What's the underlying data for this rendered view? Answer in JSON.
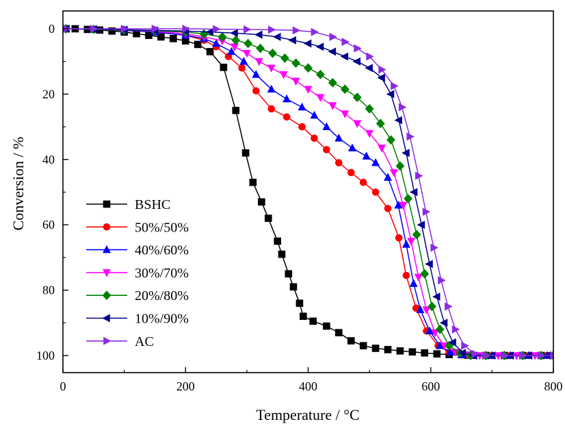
{
  "chart_data": {
    "type": "line",
    "xlabel": "Temperature / °C",
    "ylabel": "Conversion / %",
    "xlim": [
      0,
      800
    ],
    "ylim": [
      0,
      105
    ],
    "y_axis_inverted": true,
    "x_ticks": [
      0,
      200,
      400,
      600,
      800
    ],
    "x_tick_labels": [
      "0",
      "200",
      "400",
      "600",
      "800"
    ],
    "y_ticks": [
      0,
      20,
      40,
      60,
      80,
      100
    ],
    "y_tick_labels": [
      "0",
      "20",
      "40",
      "60",
      "80",
      "100"
    ],
    "grid": false,
    "legend_position": "bottom-left",
    "series": [
      {
        "name": "BSHC",
        "color": "#000000",
        "marker": "square",
        "points": [
          [
            5,
            0
          ],
          [
            20,
            0
          ],
          [
            40,
            0.2
          ],
          [
            60,
            0.4
          ],
          [
            80,
            0.7
          ],
          [
            100,
            1.0
          ],
          [
            120,
            1.5
          ],
          [
            140,
            2.0
          ],
          [
            160,
            2.5
          ],
          [
            180,
            3.0
          ],
          [
            200,
            3.7
          ],
          [
            220,
            4.8
          ],
          [
            240,
            7.0
          ],
          [
            262,
            11.8
          ],
          [
            282,
            25
          ],
          [
            298,
            38
          ],
          [
            310,
            47
          ],
          [
            324,
            53
          ],
          [
            335,
            58
          ],
          [
            350,
            65
          ],
          [
            357,
            69
          ],
          [
            368,
            75
          ],
          [
            376,
            79
          ],
          [
            386,
            84
          ],
          [
            392,
            88
          ],
          [
            408,
            89.5
          ],
          [
            430,
            91
          ],
          [
            450,
            93
          ],
          [
            470,
            95.5
          ],
          [
            490,
            97
          ],
          [
            510,
            97.8
          ],
          [
            530,
            98.2
          ],
          [
            550,
            98.6
          ],
          [
            570,
            98.9
          ],
          [
            590,
            99.2
          ],
          [
            610,
            99.5
          ],
          [
            630,
            99.7
          ],
          [
            660,
            99.9
          ],
          [
            690,
            100
          ],
          [
            720,
            100
          ],
          [
            750,
            100
          ],
          [
            780,
            100
          ],
          [
            800,
            100
          ]
        ]
      },
      {
        "name": "50%/50%",
        "color": "#ff0000",
        "marker": "circle",
        "points": [
          [
            5,
            0
          ],
          [
            50,
            0.2
          ],
          [
            100,
            0.5
          ],
          [
            150,
            1.0
          ],
          [
            200,
            2.0
          ],
          [
            230,
            3.5
          ],
          [
            250,
            5.5
          ],
          [
            270,
            8.5
          ],
          [
            292,
            12
          ],
          [
            315,
            19
          ],
          [
            340,
            24.5
          ],
          [
            365,
            27
          ],
          [
            390,
            30
          ],
          [
            410,
            33.5
          ],
          [
            430,
            37
          ],
          [
            450,
            41
          ],
          [
            470,
            44
          ],
          [
            490,
            47
          ],
          [
            510,
            50
          ],
          [
            530,
            55
          ],
          [
            548,
            64
          ],
          [
            560,
            75.5
          ],
          [
            576,
            85.5
          ],
          [
            593,
            92.5
          ],
          [
            612,
            97
          ],
          [
            630,
            99
          ],
          [
            650,
            99.8
          ],
          [
            670,
            100
          ],
          [
            700,
            100
          ],
          [
            730,
            100
          ],
          [
            760,
            100
          ],
          [
            790,
            100
          ],
          [
            800,
            100
          ]
        ]
      },
      {
        "name": "40%/60%",
        "color": "#0000ff",
        "marker": "triangle-up",
        "points": [
          [
            5,
            0
          ],
          [
            50,
            0.2
          ],
          [
            100,
            0.5
          ],
          [
            150,
            1.0
          ],
          [
            200,
            2.0
          ],
          [
            230,
            3.0
          ],
          [
            250,
            4.5
          ],
          [
            275,
            7.0
          ],
          [
            295,
            10
          ],
          [
            315,
            14
          ],
          [
            340,
            18.5
          ],
          [
            365,
            21.5
          ],
          [
            390,
            24
          ],
          [
            410,
            26.5
          ],
          [
            430,
            30
          ],
          [
            450,
            33.5
          ],
          [
            472,
            36.5
          ],
          [
            495,
            39
          ],
          [
            510,
            41
          ],
          [
            530,
            45.5
          ],
          [
            547,
            54
          ],
          [
            560,
            66
          ],
          [
            572,
            78
          ],
          [
            583,
            86
          ],
          [
            598,
            92.5
          ],
          [
            615,
            97
          ],
          [
            632,
            99
          ],
          [
            650,
            99.8
          ],
          [
            670,
            100
          ],
          [
            700,
            100
          ],
          [
            730,
            100
          ],
          [
            760,
            100
          ],
          [
            790,
            100
          ],
          [
            800,
            100
          ]
        ]
      },
      {
        "name": "30%/70%",
        "color": "#ff00ff",
        "marker": "triangle-down",
        "points": [
          [
            5,
            0
          ],
          [
            50,
            0.2
          ],
          [
            100,
            0.4
          ],
          [
            150,
            0.8
          ],
          [
            200,
            1.5
          ],
          [
            230,
            2.5
          ],
          [
            260,
            3.7
          ],
          [
            280,
            5.5
          ],
          [
            300,
            7.5
          ],
          [
            320,
            10
          ],
          [
            340,
            12
          ],
          [
            360,
            14
          ],
          [
            380,
            16
          ],
          [
            400,
            18.5
          ],
          [
            420,
            21
          ],
          [
            440,
            23.5
          ],
          [
            460,
            26
          ],
          [
            480,
            29
          ],
          [
            500,
            32
          ],
          [
            520,
            36.5
          ],
          [
            540,
            44
          ],
          [
            555,
            54
          ],
          [
            568,
            65
          ],
          [
            580,
            76
          ],
          [
            593,
            86
          ],
          [
            607,
            93
          ],
          [
            622,
            97
          ],
          [
            640,
            99
          ],
          [
            660,
            99.8
          ],
          [
            680,
            100
          ],
          [
            710,
            100
          ],
          [
            740,
            100
          ],
          [
            770,
            100
          ],
          [
            800,
            100
          ]
        ]
      },
      {
        "name": "20%/80%",
        "color": "#008000",
        "marker": "diamond",
        "points": [
          [
            5,
            0
          ],
          [
            50,
            0.2
          ],
          [
            100,
            0.4
          ],
          [
            150,
            0.6
          ],
          [
            200,
            1.0
          ],
          [
            230,
            1.6
          ],
          [
            260,
            2.5
          ],
          [
            282,
            3.5
          ],
          [
            302,
            4.5
          ],
          [
            322,
            6
          ],
          [
            342,
            7.5
          ],
          [
            362,
            9
          ],
          [
            380,
            10.5
          ],
          [
            400,
            12
          ],
          [
            420,
            14
          ],
          [
            440,
            16.5
          ],
          [
            460,
            18.5
          ],
          [
            480,
            21
          ],
          [
            500,
            24.5
          ],
          [
            518,
            29
          ],
          [
            535,
            34
          ],
          [
            550,
            42
          ],
          [
            563,
            52
          ],
          [
            577,
            63
          ],
          [
            590,
            75
          ],
          [
            602,
            85
          ],
          [
            615,
            92
          ],
          [
            630,
            97
          ],
          [
            648,
            99.3
          ],
          [
            665,
            100
          ],
          [
            690,
            100
          ],
          [
            720,
            100
          ],
          [
            750,
            100
          ],
          [
            780,
            100
          ],
          [
            800,
            100
          ]
        ]
      },
      {
        "name": "10%/90%",
        "color": "#00008b",
        "marker": "triangle-left",
        "points": [
          [
            5,
            0
          ],
          [
            50,
            0.1
          ],
          [
            100,
            0.3
          ],
          [
            150,
            0.5
          ],
          [
            200,
            0.7
          ],
          [
            240,
            1.0
          ],
          [
            280,
            1.3
          ],
          [
            320,
            1.8
          ],
          [
            350,
            2.5
          ],
          [
            375,
            3.5
          ],
          [
            400,
            4.5
          ],
          [
            420,
            5.5
          ],
          [
            440,
            7
          ],
          [
            460,
            8.5
          ],
          [
            480,
            10
          ],
          [
            500,
            12
          ],
          [
            520,
            15
          ],
          [
            535,
            20
          ],
          [
            548,
            28
          ],
          [
            560,
            38
          ],
          [
            573,
            50
          ],
          [
            585,
            60
          ],
          [
            598,
            72
          ],
          [
            610,
            82
          ],
          [
            622,
            90
          ],
          [
            636,
            96
          ],
          [
            652,
            99.2
          ],
          [
            670,
            100
          ],
          [
            700,
            100
          ],
          [
            730,
            100
          ],
          [
            760,
            100
          ],
          [
            790,
            100
          ],
          [
            800,
            100
          ]
        ]
      },
      {
        "name": "AC",
        "color": "#8a2be2",
        "marker": "triangle-right",
        "points": [
          [
            5,
            0
          ],
          [
            50,
            0
          ],
          [
            100,
            0
          ],
          [
            150,
            0
          ],
          [
            200,
            0
          ],
          [
            250,
            0.1
          ],
          [
            300,
            0.2
          ],
          [
            340,
            0.3
          ],
          [
            380,
            0.5
          ],
          [
            410,
            1.0
          ],
          [
            440,
            2.5
          ],
          [
            460,
            4
          ],
          [
            480,
            6
          ],
          [
            500,
            8.5
          ],
          [
            520,
            12.5
          ],
          [
            540,
            17.5
          ],
          [
            553,
            24
          ],
          [
            566,
            33
          ],
          [
            580,
            45
          ],
          [
            592,
            56
          ],
          [
            605,
            67
          ],
          [
            617,
            77
          ],
          [
            628,
            85
          ],
          [
            640,
            92
          ],
          [
            655,
            97
          ],
          [
            672,
            99.5
          ],
          [
            690,
            100
          ],
          [
            720,
            100
          ],
          [
            750,
            100
          ],
          [
            780,
            100
          ],
          [
            800,
            100
          ]
        ]
      }
    ]
  }
}
